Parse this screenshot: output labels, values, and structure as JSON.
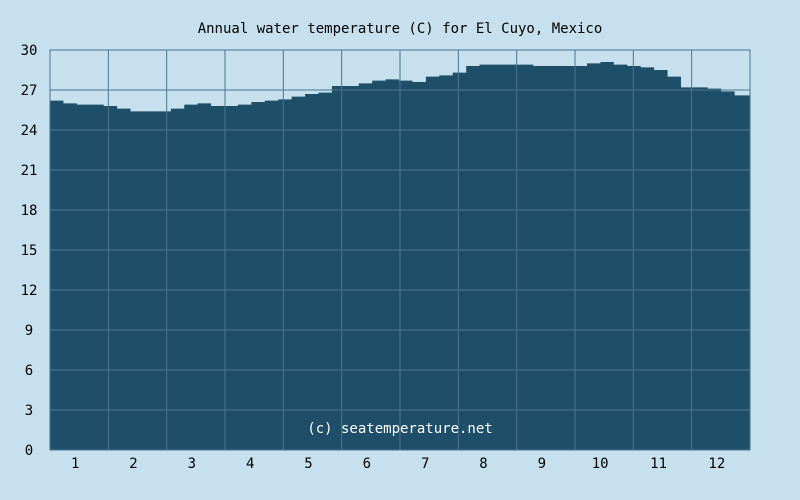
{
  "chart_data": {
    "type": "area",
    "title": "Annual water temperature (C) for El Cuyo, Mexico",
    "xlabel": "",
    "ylabel": "",
    "x_tick_labels": [
      "1",
      "2",
      "3",
      "4",
      "5",
      "6",
      "7",
      "8",
      "9",
      "10",
      "11",
      "12"
    ],
    "y_tick_labels": [
      "0",
      "3",
      "6",
      "9",
      "12",
      "15",
      "18",
      "21",
      "24",
      "27",
      "30"
    ],
    "ylim": [
      0,
      30
    ],
    "xlim": [
      1,
      366
    ],
    "grid": true,
    "credit": "(c) seatemperature.net",
    "fill_color": "#1f4e69",
    "grid_color": "#4a7590",
    "background_color": "#c6e0ee",
    "series": [
      {
        "x": [
          1,
          8,
          15,
          22,
          29,
          36,
          43,
          50,
          57,
          64,
          71,
          78,
          85,
          92,
          99,
          106,
          113,
          120,
          127,
          134,
          141,
          148,
          155,
          162,
          169,
          176,
          183,
          190,
          197,
          204,
          211,
          218,
          225,
          232,
          239,
          246,
          253,
          260,
          267,
          274,
          281,
          288,
          295,
          302,
          309,
          316,
          323,
          330,
          337,
          344,
          351,
          358,
          366
        ],
        "values": [
          26.2,
          26.0,
          25.9,
          25.9,
          25.8,
          25.6,
          25.4,
          25.4,
          25.4,
          25.6,
          25.9,
          26.0,
          25.8,
          25.8,
          25.9,
          26.1,
          26.2,
          26.3,
          26.5,
          26.7,
          26.8,
          27.3,
          27.3,
          27.5,
          27.7,
          27.8,
          27.7,
          27.6,
          28.0,
          28.1,
          28.3,
          28.8,
          28.9,
          28.9,
          28.9,
          28.9,
          28.8,
          28.8,
          28.8,
          28.8,
          29.0,
          29.1,
          28.9,
          28.8,
          28.7,
          28.5,
          28.0,
          27.2,
          27.2,
          27.1,
          26.9,
          26.6,
          26.0
        ]
      }
    ]
  }
}
